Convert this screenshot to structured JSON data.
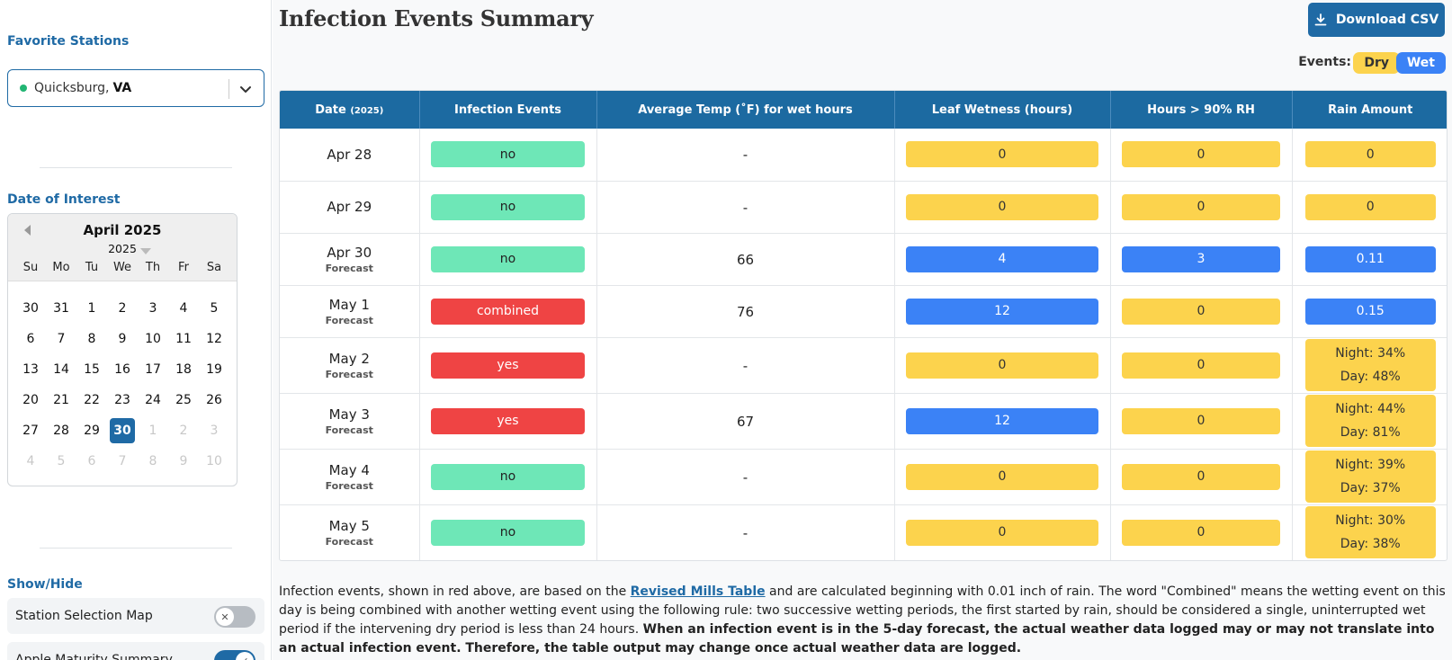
{
  "sidebar": {
    "favorite_title": "Favorite Stations",
    "station_name": "Quicksburg,",
    "station_state": "VA",
    "date_title": "Date of Interest",
    "calendar": {
      "month_label": "April 2025",
      "year_label": "2025",
      "weekdays": [
        "Su",
        "Mo",
        "Tu",
        "We",
        "Th",
        "Fr",
        "Sa"
      ],
      "days": [
        {
          "d": "30",
          "muted": false
        },
        {
          "d": "31",
          "muted": false
        },
        {
          "d": "1",
          "muted": false
        },
        {
          "d": "2",
          "muted": false
        },
        {
          "d": "3",
          "muted": false
        },
        {
          "d": "4",
          "muted": false
        },
        {
          "d": "5",
          "muted": false
        },
        {
          "d": "6",
          "muted": false
        },
        {
          "d": "7",
          "muted": false
        },
        {
          "d": "8",
          "muted": false
        },
        {
          "d": "9",
          "muted": false
        },
        {
          "d": "10",
          "muted": false
        },
        {
          "d": "11",
          "muted": false
        },
        {
          "d": "12",
          "muted": false
        },
        {
          "d": "13",
          "muted": false
        },
        {
          "d": "14",
          "muted": false
        },
        {
          "d": "15",
          "muted": false
        },
        {
          "d": "16",
          "muted": false
        },
        {
          "d": "17",
          "muted": false
        },
        {
          "d": "18",
          "muted": false
        },
        {
          "d": "19",
          "muted": false
        },
        {
          "d": "20",
          "muted": false
        },
        {
          "d": "21",
          "muted": false
        },
        {
          "d": "22",
          "muted": false
        },
        {
          "d": "23",
          "muted": false
        },
        {
          "d": "24",
          "muted": false
        },
        {
          "d": "25",
          "muted": false
        },
        {
          "d": "26",
          "muted": false
        },
        {
          "d": "27",
          "muted": false
        },
        {
          "d": "28",
          "muted": false
        },
        {
          "d": "29",
          "muted": false
        },
        {
          "d": "30",
          "muted": false,
          "selected": true
        },
        {
          "d": "1",
          "muted": true
        },
        {
          "d": "2",
          "muted": true
        },
        {
          "d": "3",
          "muted": true
        },
        {
          "d": "4",
          "muted": true
        },
        {
          "d": "5",
          "muted": true
        },
        {
          "d": "6",
          "muted": true
        },
        {
          "d": "7",
          "muted": true
        },
        {
          "d": "8",
          "muted": true
        },
        {
          "d": "9",
          "muted": true
        },
        {
          "d": "10",
          "muted": true
        }
      ]
    },
    "showhide_title": "Show/Hide",
    "toggles": [
      {
        "label": "Station Selection Map",
        "on": false
      },
      {
        "label": "Apple Maturity Summary",
        "on": true
      }
    ]
  },
  "main": {
    "title": "Infection Events Summary",
    "download_label": "Download CSV",
    "events_label": "Events:",
    "legend_dry": "Dry",
    "legend_wet": "Wet",
    "columns": {
      "date": "Date",
      "date_year": "(2025)",
      "infection": "Infection Events",
      "temp": "Average Temp (˚F) for wet hours",
      "leaf": "Leaf Wetness (hours)",
      "rh": "Hours > 90% RH",
      "rain": "Rain Amount"
    },
    "rows": [
      {
        "date": "Apr 28",
        "sub": "",
        "event": "no",
        "temp": "-",
        "leaf": "0",
        "leaf_wet": false,
        "rh": "0",
        "rh_wet": false,
        "rain": "0",
        "rain_wet": false
      },
      {
        "date": "Apr 29",
        "sub": "",
        "event": "no",
        "temp": "-",
        "leaf": "0",
        "leaf_wet": false,
        "rh": "0",
        "rh_wet": false,
        "rain": "0",
        "rain_wet": false
      },
      {
        "date": "Apr 30",
        "sub": "Forecast",
        "event": "no",
        "temp": "66",
        "leaf": "4",
        "leaf_wet": true,
        "rh": "3",
        "rh_wet": true,
        "rain": "0.11",
        "rain_wet": true
      },
      {
        "date": "May 1",
        "sub": "Forecast",
        "event": "combined",
        "temp": "76",
        "leaf": "12",
        "leaf_wet": true,
        "rh": "0",
        "rh_wet": false,
        "rain": "0.15",
        "rain_wet": true
      },
      {
        "date": "May 2",
        "sub": "Forecast",
        "event": "yes",
        "temp": "-",
        "leaf": "0",
        "leaf_wet": false,
        "rh": "0",
        "rh_wet": false,
        "rain_night": "Night: 34%",
        "rain_day": "Day: 48%"
      },
      {
        "date": "May 3",
        "sub": "Forecast",
        "event": "yes",
        "temp": "67",
        "leaf": "12",
        "leaf_wet": true,
        "rh": "0",
        "rh_wet": false,
        "rain_night": "Night: 44%",
        "rain_day": "Day: 81%"
      },
      {
        "date": "May 4",
        "sub": "Forecast",
        "event": "no",
        "temp": "-",
        "leaf": "0",
        "leaf_wet": false,
        "rh": "0",
        "rh_wet": false,
        "rain_night": "Night: 39%",
        "rain_day": "Day: 37%"
      },
      {
        "date": "May 5",
        "sub": "Forecast",
        "event": "no",
        "temp": "-",
        "leaf": "0",
        "leaf_wet": false,
        "rh": "0",
        "rh_wet": false,
        "rain_night": "Night: 30%",
        "rain_day": "Day: 38%"
      }
    ],
    "footnote": {
      "part1": "Infection events, shown in red above, are based on the ",
      "link": "Revised Mills Table",
      "part2": " and are calculated beginning with 0.01 inch of rain. The word \"Combined\" means the wetting event on this day is being combined with another wetting event using the following rule: two successive wetting periods, the first started by rain, should be considered a single, uninterrupted wet period if the intervening dry period is less than 24 hours. ",
      "bold": "When an infection event is in the 5-day forecast, the actual weather data logged may or may not translate into an actual infection event. Therefore, the table output may change once actual weather data are logged."
    }
  }
}
